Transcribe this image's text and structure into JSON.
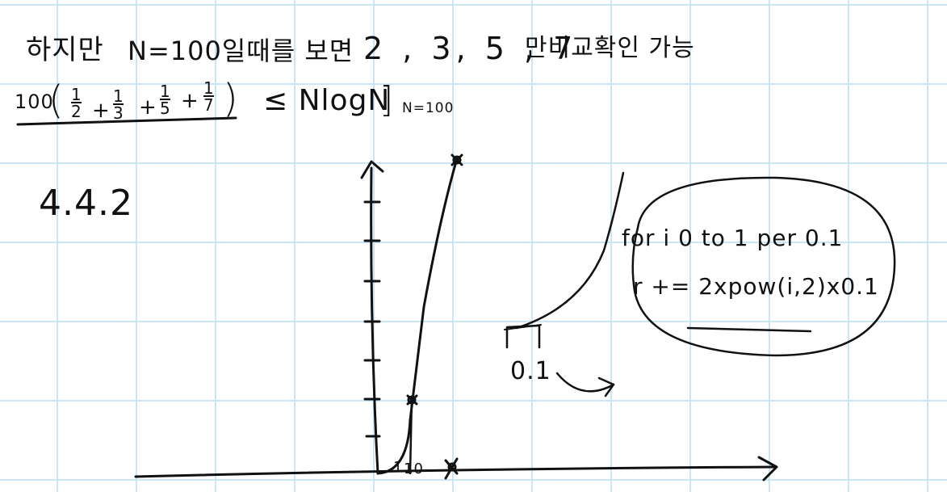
{
  "note": {
    "line1": {
      "text_a": "하지만",
      "text_b": "N=100일때를 보면",
      "primes": "2 , 3, 5 , 7",
      "text_c": "만비교확인 가능"
    },
    "inequality": {
      "coefficient": "100",
      "open_paren": "(",
      "fractions": [
        {
          "num": "1",
          "den": "2"
        },
        {
          "num": "1",
          "den": "3"
        },
        {
          "num": "1",
          "den": "5"
        },
        {
          "num": "1",
          "den": "7"
        }
      ],
      "plus": "+",
      "close_paren": ")",
      "relation": "≤ NlogN",
      "bracket": "]",
      "subscript": "N=100"
    },
    "section_label": "4.4.2",
    "graph": {
      "tick_label_1": "1",
      "tick_label_2": "10"
    },
    "detail": {
      "step_label": "0.1"
    },
    "code": {
      "line1": "for i 0 to 1 per 0.1",
      "line2": "r += 2xpow(i,2)x0.1"
    }
  }
}
